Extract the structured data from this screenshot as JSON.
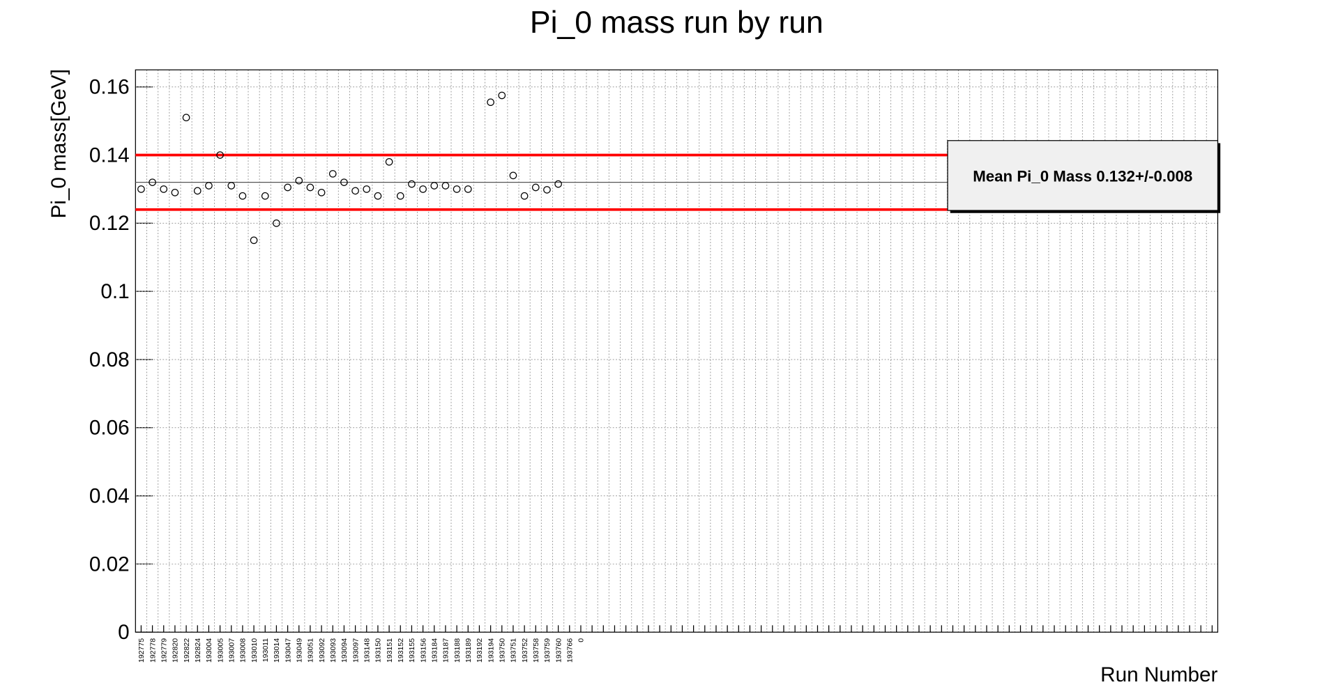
{
  "chart_data": {
    "type": "scatter",
    "title": "Pi_0 mass run by run",
    "x_label": "Run Number",
    "y_label": "Pi_0 mass[GeV]",
    "categories": [
      "192775",
      "192778",
      "192779",
      "192820",
      "192822",
      "192824",
      "193004",
      "193005",
      "193007",
      "193008",
      "193010",
      "193011",
      "193014",
      "193047",
      "193049",
      "193051",
      "193092",
      "193093",
      "193094",
      "193097",
      "193148",
      "193150",
      "193151",
      "193152",
      "193155",
      "193156",
      "193184",
      "193187",
      "193188",
      "193189",
      "193192",
      "193194",
      "193750",
      "193751",
      "193752",
      "193758",
      "193759",
      "193760",
      "193766",
      "0",
      null,
      null,
      null,
      null,
      null,
      null,
      null,
      null,
      null,
      null,
      null,
      null,
      null,
      null,
      null,
      null,
      null,
      null,
      null,
      null,
      null,
      null,
      null,
      null,
      null,
      null,
      null,
      null,
      null,
      null,
      null,
      null,
      null,
      null,
      null,
      null,
      null,
      null,
      null,
      null,
      null,
      null,
      null,
      null,
      null,
      null,
      null,
      null,
      null,
      null,
      null,
      null,
      null,
      null,
      null,
      null
    ],
    "values": [
      0.13,
      0.132,
      0.13,
      0.129,
      0.151,
      0.1295,
      0.131,
      0.14,
      0.131,
      0.128,
      0.115,
      0.128,
      0.12,
      0.1305,
      0.1325,
      0.1305,
      0.129,
      0.1345,
      0.132,
      0.1295,
      0.13,
      0.128,
      0.138,
      0.128,
      0.1315,
      0.13,
      0.131,
      0.131,
      0.13,
      0.13,
      null,
      0.1555,
      0.1575,
      0.134,
      0.128,
      0.1305,
      0.1298,
      0.1315,
      null,
      null,
      null,
      null,
      null,
      null,
      null,
      null,
      null,
      null,
      null,
      null,
      null,
      null,
      null,
      null,
      null,
      null,
      null,
      null,
      null,
      null,
      null,
      null,
      null,
      null,
      null,
      null,
      null,
      null,
      null,
      null,
      null,
      null,
      null,
      null,
      null,
      null,
      null,
      null,
      null,
      null,
      null,
      null,
      null,
      null,
      null,
      null,
      null,
      null,
      null,
      null,
      null,
      null,
      null,
      null,
      null,
      null
    ],
    "color": "#000000",
    "ylim": [
      0,
      0.165
    ],
    "yticks": [
      0,
      0.02,
      0.04,
      0.06,
      0.08,
      0.1,
      0.12,
      0.14,
      0.16
    ],
    "grid": true,
    "mean": 0.132,
    "error": 0.008,
    "mean_color": "#555555",
    "band_color": "#ff0000",
    "legend_text": "Mean Pi_0 Mass 0.132+/-0.008",
    "legend_position": "upper right"
  }
}
